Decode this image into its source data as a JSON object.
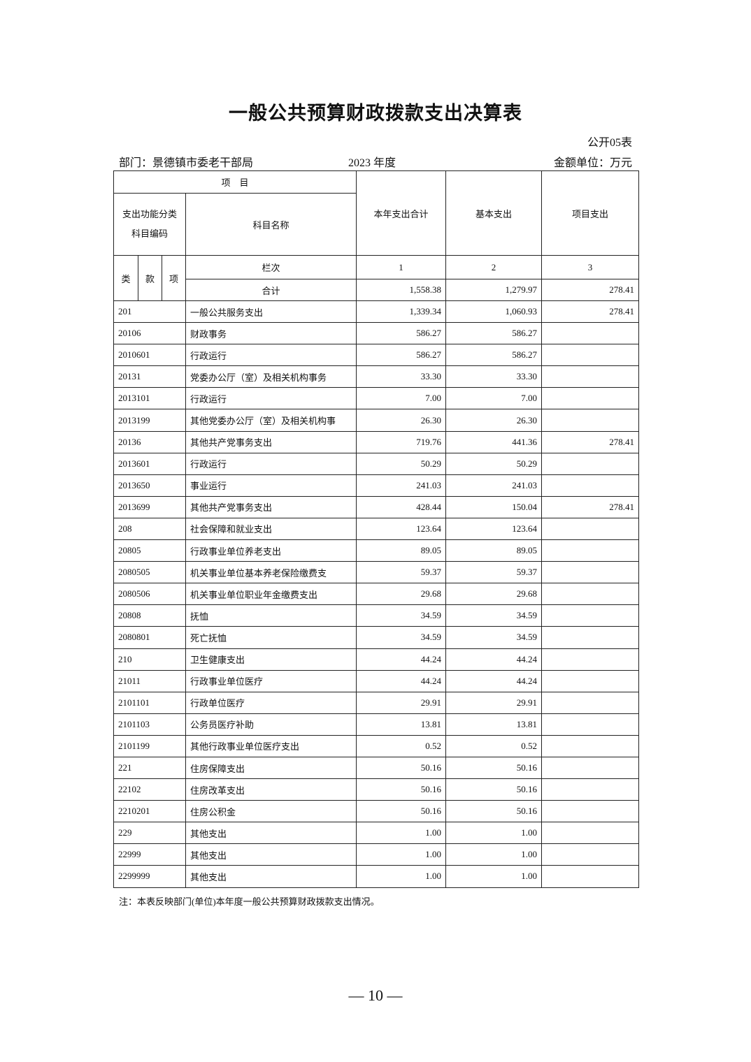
{
  "title": "一般公共预算财政拨款支出决算表",
  "table_tag": "公开05表",
  "department": "部门：景德镇市委老干部局",
  "year": "2023 年度",
  "unit": "金额单位：万元",
  "header": {
    "item": "项    目",
    "code": "支出功能分类科目编码",
    "name": "科目名称",
    "col1": "本年支出合计",
    "col2": "基本支出",
    "col3": "项目支出",
    "lei": "类",
    "kuan": "款",
    "xiang": "项",
    "lanci": "栏次",
    "n1": "1",
    "n2": "2",
    "n3": "3",
    "total_label": "合计",
    "total1": "1,558.38",
    "total2": "1,279.97",
    "total3": "278.41"
  },
  "rows": [
    [
      "201",
      "一般公共服务支出",
      "1,339.34",
      "1,060.93",
      "278.41"
    ],
    [
      "20106",
      "财政事务",
      "586.27",
      "586.27",
      ""
    ],
    [
      "2010601",
      "行政运行",
      "586.27",
      "586.27",
      ""
    ],
    [
      "20131",
      "党委办公厅（室）及相关机构事务",
      "33.30",
      "33.30",
      ""
    ],
    [
      "2013101",
      "行政运行",
      "7.00",
      "7.00",
      ""
    ],
    [
      "2013199",
      "其他党委办公厅（室）及相关机构事",
      "26.30",
      "26.30",
      ""
    ],
    [
      "20136",
      "其他共产党事务支出",
      "719.76",
      "441.36",
      "278.41"
    ],
    [
      "2013601",
      "行政运行",
      "50.29",
      "50.29",
      ""
    ],
    [
      "2013650",
      "事业运行",
      "241.03",
      "241.03",
      ""
    ],
    [
      "2013699",
      "其他共产党事务支出",
      "428.44",
      "150.04",
      "278.41"
    ],
    [
      "208",
      "社会保障和就业支出",
      "123.64",
      "123.64",
      ""
    ],
    [
      "20805",
      "行政事业单位养老支出",
      "89.05",
      "89.05",
      ""
    ],
    [
      "2080505",
      "机关事业单位基本养老保险缴费支",
      "59.37",
      "59.37",
      ""
    ],
    [
      "2080506",
      "机关事业单位职业年金缴费支出",
      "29.68",
      "29.68",
      ""
    ],
    [
      "20808",
      "抚恤",
      "34.59",
      "34.59",
      ""
    ],
    [
      "2080801",
      "死亡抚恤",
      "34.59",
      "34.59",
      ""
    ],
    [
      "210",
      "卫生健康支出",
      "44.24",
      "44.24",
      ""
    ],
    [
      "21011",
      "行政事业单位医疗",
      "44.24",
      "44.24",
      ""
    ],
    [
      "2101101",
      "行政单位医疗",
      "29.91",
      "29.91",
      ""
    ],
    [
      "2101103",
      "公务员医疗补助",
      "13.81",
      "13.81",
      ""
    ],
    [
      "2101199",
      "其他行政事业单位医疗支出",
      "0.52",
      "0.52",
      ""
    ],
    [
      "221",
      "住房保障支出",
      "50.16",
      "50.16",
      ""
    ],
    [
      "22102",
      "住房改革支出",
      "50.16",
      "50.16",
      ""
    ],
    [
      "2210201",
      "住房公积金",
      "50.16",
      "50.16",
      ""
    ],
    [
      "229",
      "其他支出",
      "1.00",
      "1.00",
      ""
    ],
    [
      "22999",
      "其他支出",
      "1.00",
      "1.00",
      ""
    ],
    [
      "2299999",
      "其他支出",
      "1.00",
      "1.00",
      ""
    ]
  ],
  "note": "注：本表反映部门(单位)本年度一般公共预算财政拨款支出情况。",
  "page_number": "— 10 —"
}
